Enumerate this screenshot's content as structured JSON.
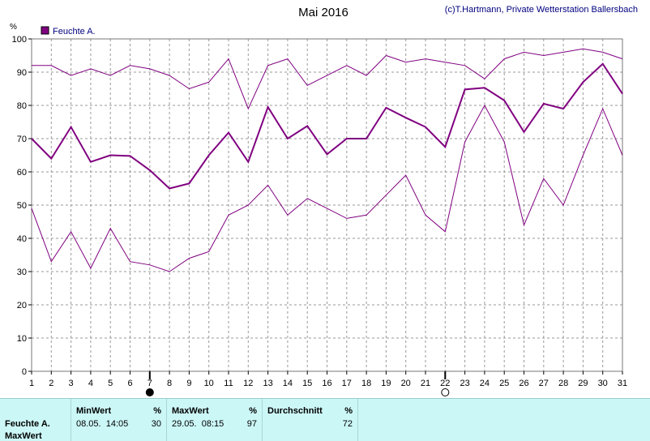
{
  "chart_data": {
    "type": "line",
    "title": "Mai 2016",
    "copyright": "(c)T.Hartmann, Private Wetterstation Ballersbach",
    "ylabel": "%",
    "xlabel": "",
    "ylim": [
      0,
      100
    ],
    "yticks": [
      0,
      10,
      20,
      30,
      40,
      50,
      60,
      70,
      80,
      90,
      100
    ],
    "xlim": [
      1,
      31
    ],
    "x": [
      1,
      2,
      3,
      4,
      5,
      6,
      7,
      8,
      9,
      10,
      11,
      12,
      13,
      14,
      15,
      16,
      17,
      18,
      19,
      20,
      21,
      22,
      23,
      24,
      25,
      26,
      27,
      28,
      29,
      30,
      31
    ],
    "grid": true,
    "legend": {
      "position": "top-left",
      "label": "Feuchte A.",
      "color": "#800080"
    },
    "moon_markers": [
      {
        "day": 7,
        "phase": "new-moon"
      },
      {
        "day": 22,
        "phase": "full-moon"
      }
    ],
    "series": [
      {
        "role": "max",
        "color": "#800080",
        "values": [
          92,
          92,
          89,
          91,
          89,
          92,
          91,
          89,
          85,
          87,
          94,
          79,
          92,
          94,
          86,
          89,
          92,
          89,
          95,
          93,
          94,
          93,
          92,
          88,
          94,
          96,
          95,
          96,
          97,
          96,
          94
        ]
      },
      {
        "role": "avg",
        "color": "#800080",
        "values": [
          70,
          64,
          73.5,
          63,
          65,
          64.8,
          60.5,
          55,
          56.5,
          65,
          71.8,
          63,
          79.5,
          70,
          73.8,
          65.3,
          70,
          70,
          79.3,
          76.3,
          73.5,
          67.5,
          84.8,
          85.3,
          81.5,
          72,
          80.5,
          79,
          87,
          92.5,
          83.5
        ]
      },
      {
        "role": "min",
        "color": "#800080",
        "values": [
          49,
          33,
          42,
          31,
          43,
          33,
          32,
          30,
          34,
          36,
          47,
          50,
          56,
          47,
          52,
          49,
          46,
          47,
          53,
          59,
          47,
          42,
          69,
          80,
          69,
          44,
          58,
          50,
          65,
          79,
          65
        ]
      }
    ]
  },
  "stats": {
    "series_name": "Feuchte A.",
    "row_label": "MaxWert",
    "min": {
      "header": "MinWert",
      "unit": "%",
      "date": "08.05.",
      "time": "14:05",
      "value": "30"
    },
    "max": {
      "header": "MaxWert",
      "unit": "%",
      "date": "29.05.",
      "time": "08:15",
      "value": "97"
    },
    "avg": {
      "header": "Durchschnitt",
      "unit": "%",
      "value": "72"
    }
  }
}
